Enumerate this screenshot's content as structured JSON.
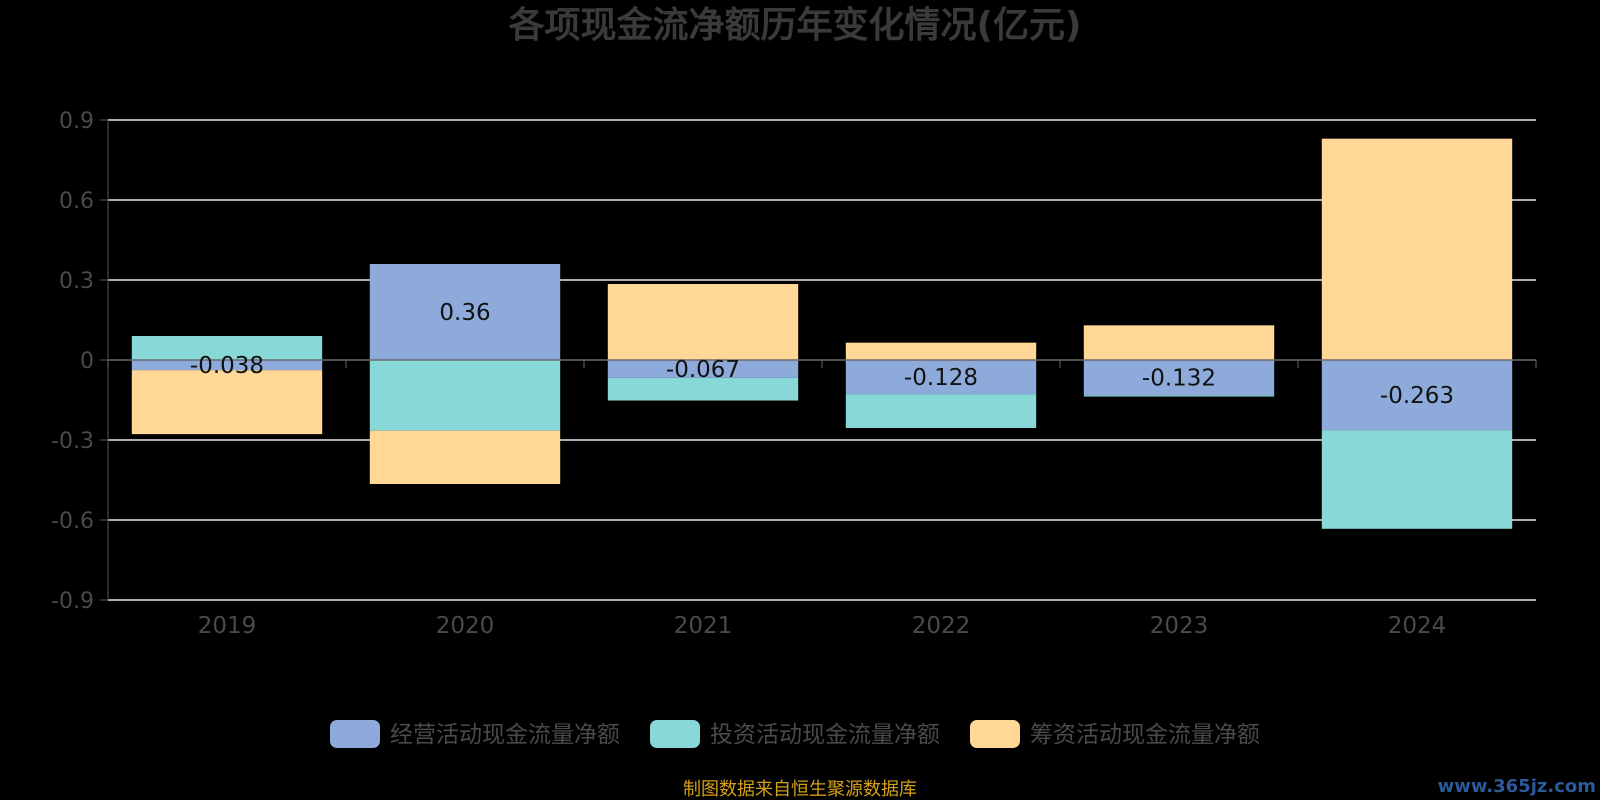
{
  "chart_data": {
    "type": "bar",
    "stacked": true,
    "title": "各项现金流净额历年变化情况(亿元)",
    "categories": [
      "2019",
      "2020",
      "2021",
      "2022",
      "2023",
      "2024"
    ],
    "ylim": [
      -0.9,
      0.9
    ],
    "yticks": [
      0.9,
      0.6,
      0.3,
      0,
      -0.3,
      -0.6,
      -0.9
    ],
    "ytick_labels": [
      "0.9",
      "0.6",
      "0.3",
      "0",
      "-0.3",
      "-0.6",
      "-0.9"
    ],
    "grid": true,
    "legend_position": "bottom",
    "series": [
      {
        "name": "经营活动现金流量净额",
        "color": "#8eaadb",
        "values": [
          -0.038,
          0.36,
          -0.067,
          -0.128,
          -0.132,
          -0.263
        ],
        "show_labels": true
      },
      {
        "name": "投资活动现金流量净额",
        "color": "#88d8d8",
        "values": [
          0.09,
          -0.265,
          -0.085,
          -0.127,
          -0.005,
          -0.37
        ],
        "show_labels": false
      },
      {
        "name": "筹资活动现金流量净额",
        "color": "#ffd897",
        "values": [
          -0.24,
          -0.2,
          0.285,
          0.065,
          0.13,
          0.83
        ],
        "show_labels": false
      }
    ]
  },
  "source_note": "制图数据来自恒生聚源数据库",
  "watermark": "www.365jz.com"
}
